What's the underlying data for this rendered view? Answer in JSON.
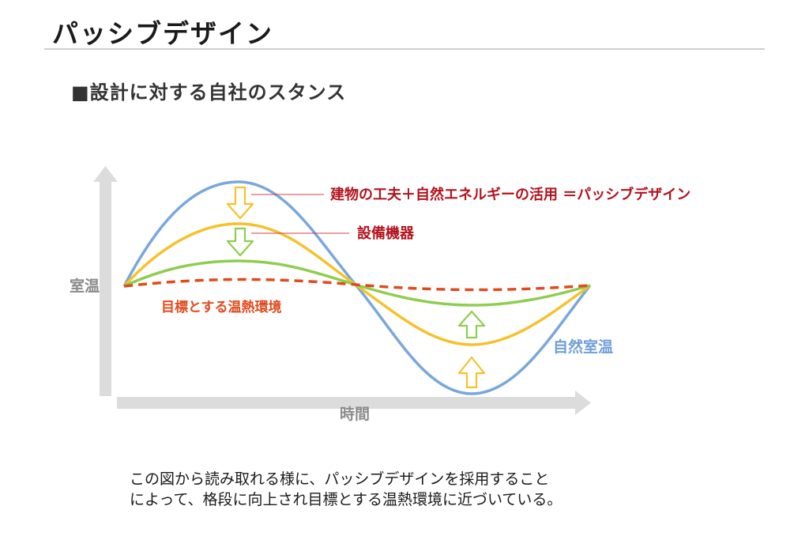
{
  "page": {
    "title": "パッシブデザイン",
    "section_heading": "■設計に対する自社のスタンス"
  },
  "diagram": {
    "y_axis_label": "室温",
    "x_axis_label": "時間",
    "labels": {
      "passive_design": "建物の工夫＋自然エネルギーの活用 ＝パッシブデザイン",
      "equipment": "設備機器",
      "target": "目標とする温熱環境",
      "natural": "自然室温"
    },
    "colors": {
      "natural": "#7aa7dc",
      "passive": "#f5c22c",
      "equipment": "#8fcd4f",
      "target": "#e04b1e",
      "callout_text": "#b3121b",
      "axis": "#dcdcdc",
      "axis_label": "#8a8a8a"
    }
  },
  "caption": {
    "line1": "この図から読み取れる様に、パッシブデザインを採用すること",
    "line2": "によって、格段に向上され目標とする温熱環境に近づいている。"
  }
}
